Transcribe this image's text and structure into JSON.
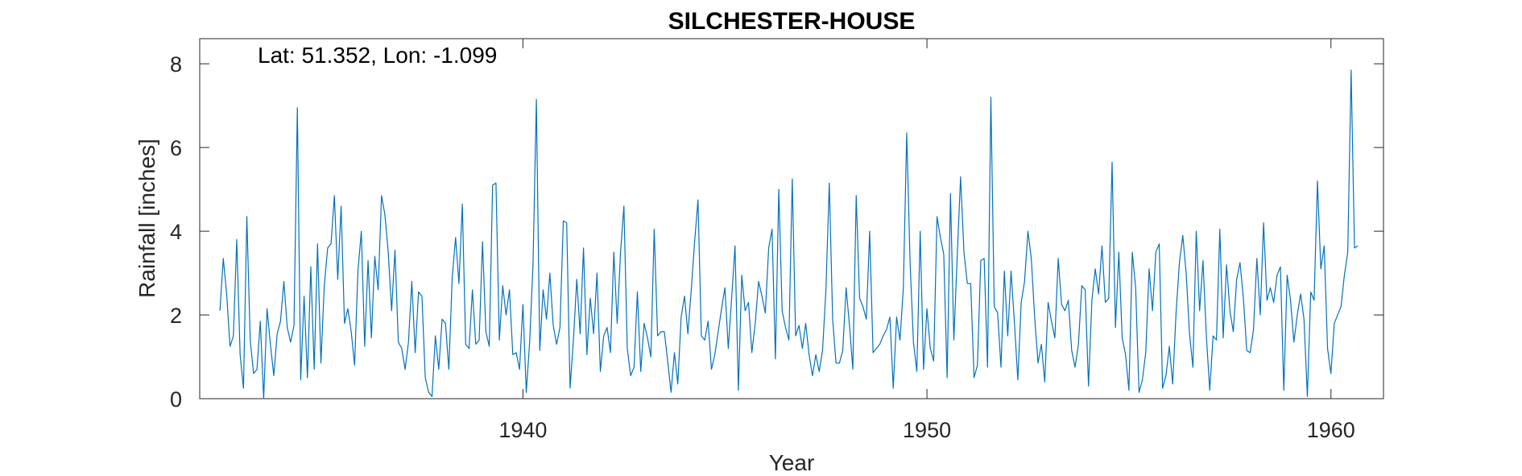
{
  "chart_data": {
    "type": "line",
    "title": "SILCHESTER-HOUSE",
    "annotation": "Lat: 51.352, Lon: -1.099",
    "xlabel": "Year",
    "ylabel": "Rainfall [inches]",
    "xlim": [
      1932.0,
      1961.3
    ],
    "ylim": [
      0,
      8.6
    ],
    "xticks": [
      1940,
      1950,
      1960
    ],
    "yticks": [
      0,
      2,
      4,
      6,
      8
    ],
    "grid": false,
    "line_color": "#0072BD",
    "x_start": 1932.5,
    "x_step": 0.08333,
    "series": [
      {
        "values": [
          2.1,
          3.35,
          2.5,
          1.25,
          1.5,
          3.8,
          1.05,
          0.25,
          4.35,
          1.4,
          0.6,
          0.7,
          1.85,
          0.0,
          2.15,
          1.3,
          0.55,
          1.55,
          1.85,
          2.8,
          1.7,
          1.35,
          1.75,
          6.95,
          0.45,
          2.45,
          0.5,
          3.15,
          0.7,
          3.7,
          0.85,
          2.7,
          3.6,
          3.7,
          4.85,
          2.85,
          4.6,
          1.8,
          2.15,
          1.6,
          0.8,
          3.05,
          4.0,
          1.25,
          3.3,
          1.45,
          3.4,
          2.6,
          4.85,
          4.4,
          3.5,
          2.1,
          3.55,
          1.35,
          1.2,
          0.7,
          1.35,
          2.8,
          1.1,
          2.55,
          2.45,
          0.5,
          0.15,
          0.05,
          1.5,
          0.7,
          1.9,
          1.8,
          0.7,
          2.9,
          3.85,
          2.75,
          4.65,
          1.3,
          1.2,
          2.6,
          1.3,
          1.4,
          3.75,
          1.6,
          1.25,
          5.1,
          5.15,
          1.4,
          2.7,
          2.0,
          2.6,
          1.05,
          1.1,
          0.7,
          2.25,
          0.15,
          1.35,
          3.2,
          7.15,
          1.15,
          2.6,
          1.9,
          3.0,
          1.75,
          1.3,
          1.7,
          4.25,
          4.2,
          0.25,
          1.4,
          2.85,
          1.55,
          3.6,
          1.05,
          2.4,
          1.55,
          3.0,
          0.65,
          1.5,
          1.7,
          1.1,
          3.5,
          1.8,
          3.5,
          4.6,
          1.2,
          0.55,
          0.75,
          2.55,
          0.65,
          1.8,
          1.45,
          1.0,
          4.05,
          1.5,
          1.6,
          1.6,
          0.9,
          0.15,
          1.1,
          0.35,
          1.95,
          2.45,
          1.55,
          2.6,
          3.75,
          4.75,
          1.5,
          1.4,
          1.85,
          0.7,
          1.05,
          1.6,
          2.15,
          2.65,
          1.2,
          2.4,
          3.65,
          0.2,
          2.95,
          2.1,
          2.3,
          1.1,
          1.8,
          2.8,
          2.45,
          2.05,
          3.6,
          4.05,
          0.95,
          5.0,
          2.1,
          1.7,
          1.4,
          5.25,
          1.5,
          1.75,
          1.2,
          1.8,
          1.05,
          0.55,
          1.05,
          0.65,
          1.15,
          2.6,
          5.15,
          1.9,
          0.85,
          0.85,
          1.15,
          2.65,
          1.75,
          0.7,
          4.85,
          2.4,
          2.2,
          1.9,
          4.0,
          1.1,
          1.2,
          1.3,
          1.5,
          1.65,
          1.95,
          0.25,
          1.95,
          1.4,
          2.65,
          6.35,
          3.25,
          1.35,
          0.65,
          4.0,
          0.7,
          2.15,
          1.2,
          0.9,
          4.35,
          3.85,
          3.45,
          0.5,
          4.9,
          1.4,
          3.4,
          5.3,
          3.5,
          2.75,
          2.75,
          0.5,
          0.8,
          3.3,
          3.35,
          0.75,
          7.2,
          2.2,
          2.05,
          0.75,
          3.05,
          1.5,
          3.05,
          1.8,
          0.45,
          2.3,
          2.8,
          4.0,
          3.35,
          1.95,
          0.85,
          1.3,
          0.4,
          2.3,
          1.85,
          1.45,
          3.35,
          2.25,
          2.1,
          2.35,
          1.15,
          0.75,
          1.3,
          2.7,
          2.6,
          0.3,
          2.35,
          3.1,
          2.5,
          3.65,
          2.3,
          2.4,
          5.65,
          1.7,
          3.5,
          1.45,
          1.05,
          0.2,
          3.5,
          2.65,
          0.15,
          0.45,
          1.1,
          3.1,
          2.1,
          3.5,
          3.7,
          0.25,
          0.55,
          1.25,
          0.35,
          2.05,
          3.25,
          3.9,
          3.0,
          1.55,
          0.75,
          4.0,
          2.1,
          3.3,
          1.5,
          0.2,
          1.5,
          1.4,
          4.05,
          1.45,
          3.2,
          2.1,
          1.6,
          2.85,
          3.25,
          2.4,
          1.15,
          1.1,
          1.65,
          3.35,
          2.0,
          4.2,
          2.35,
          2.65,
          2.3,
          2.95,
          3.15,
          0.2,
          2.95,
          2.35,
          1.35,
          2.0,
          2.5,
          1.9,
          0.05,
          2.55,
          2.35,
          5.2,
          3.1,
          3.65,
          1.2,
          0.6,
          1.8,
          2.0,
          2.2,
          2.95,
          3.5,
          7.85,
          3.6,
          3.65
        ]
      }
    ]
  }
}
